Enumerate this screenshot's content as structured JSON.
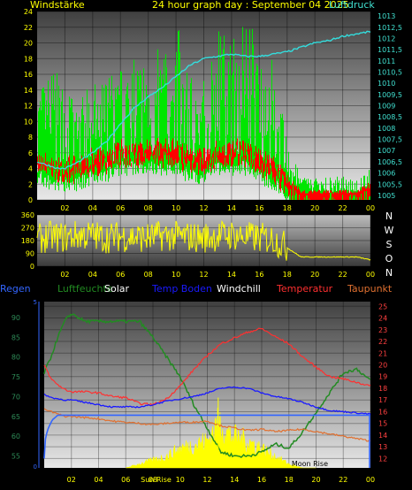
{
  "colors": {
    "background": "#000000",
    "wind": "#00e600",
    "gust": "#00cc00",
    "wind_red": "#ff0000",
    "pressure": "#33dddd",
    "direction": "#ffff00",
    "humidity": "#228b22",
    "solar": "#ffff00",
    "temp_ground": "#1a1aff",
    "temperature": "#ff3030",
    "dewpoint": "#e07030",
    "rain": "#3366ff",
    "axis_left_top": "#ffff00",
    "axis_right_top": "#40e0d0",
    "axis_left_bottom": "#2e8b57",
    "axis_right_bottom": "#ff4040"
  },
  "chart_data": [
    {
      "type": "line",
      "title": "24 hour graph day : September 04 2025",
      "left_label": "Windstärke",
      "right_label": "Luftdruck",
      "x_ticks": [
        "02",
        "04",
        "06",
        "08",
        "10",
        "12",
        "14",
        "16",
        "18",
        "20",
        "22",
        "00"
      ],
      "y_left_ticks": [
        "0",
        "2",
        "4",
        "6",
        "8",
        "10",
        "12",
        "14",
        "16",
        "18",
        "20",
        "22",
        "24"
      ],
      "y_left_range": [
        0,
        24
      ],
      "y_right_ticks": [
        "1005",
        "1005,5",
        "1006",
        "1006,5",
        "1007",
        "1007,5",
        "1008",
        "1008,5",
        "1009",
        "1009,5",
        "1010",
        "1010,5",
        "1011",
        "1011,5",
        "1012",
        "1012,5",
        "1013"
      ],
      "y_right_range": [
        1004.8,
        1013.2
      ],
      "series": [
        {
          "name": "Luftdruck",
          "axis": "right",
          "x": [
            0,
            0.5,
            1,
            1.5,
            2,
            3,
            4,
            5,
            6,
            7,
            8,
            9,
            10,
            11,
            12,
            13,
            14,
            15,
            16,
            17,
            18,
            19,
            20,
            21,
            22,
            23,
            24
          ],
          "values": [
            1006.5,
            1006.4,
            1006.3,
            1006.2,
            1006.2,
            1006.5,
            1006.9,
            1007.4,
            1008.2,
            1008.9,
            1009.4,
            1009.8,
            1010.3,
            1010.8,
            1011.1,
            1011.2,
            1011.3,
            1011.2,
            1011.2,
            1011.3,
            1011.4,
            1011.6,
            1011.8,
            1011.9,
            1012.1,
            1012.2,
            1012.3
          ]
        },
        {
          "name": "Windstärke",
          "axis": "left",
          "x": [
            0,
            1,
            2,
            3,
            4,
            5,
            6,
            7,
            8,
            9,
            10,
            11,
            12,
            13,
            14,
            15,
            16,
            17,
            18,
            19,
            20,
            21,
            22,
            23,
            24
          ],
          "values": [
            6,
            5,
            5,
            5,
            6,
            6,
            7,
            7,
            7,
            7,
            7,
            6,
            6,
            7,
            7,
            7,
            6,
            5,
            3,
            1,
            1,
            1,
            1,
            1,
            2
          ]
        },
        {
          "name": "Böen",
          "axis": "left",
          "x": [
            0,
            1,
            2,
            3,
            4,
            5,
            6,
            7,
            8,
            9,
            10,
            11,
            12,
            13,
            14,
            15,
            16,
            17,
            18,
            19,
            20,
            21,
            22,
            23,
            24
          ],
          "values": [
            14,
            17,
            15,
            13,
            15,
            16,
            17,
            18,
            19,
            20,
            23,
            17,
            16,
            22,
            21,
            24,
            21,
            18,
            7,
            3,
            3,
            3,
            3,
            3,
            4
          ]
        }
      ]
    },
    {
      "type": "line",
      "x_ticks": [
        "02",
        "04",
        "06",
        "08",
        "10",
        "12",
        "14",
        "16",
        "18",
        "20",
        "22",
        "00"
      ],
      "y_ticks": [
        "0",
        "90",
        "180",
        "270",
        "360"
      ],
      "y_range": [
        0,
        360
      ],
      "right_labels": [
        "N",
        "W",
        "S",
        "O",
        "N"
      ],
      "series": [
        {
          "name": "Windrichtung",
          "x": [
            0,
            1,
            2,
            3,
            4,
            5,
            6,
            7,
            8,
            9,
            10,
            11,
            12,
            13,
            14,
            15,
            16,
            17,
            18,
            19,
            20,
            21,
            22,
            23,
            24
          ],
          "values": [
            190,
            210,
            200,
            220,
            215,
            200,
            210,
            205,
            200,
            215,
            210,
            205,
            200,
            215,
            220,
            205,
            200,
            190,
            130,
            65,
            65,
            65,
            65,
            65,
            45
          ]
        }
      ]
    },
    {
      "type": "line",
      "legend": [
        "Regen",
        "Luftfeuchte",
        "Solar",
        "Temp Boden",
        "Windchill",
        "Temperatur",
        "Taupunkt"
      ],
      "x_ticks": [
        "02",
        "04",
        "06",
        "08",
        "10",
        "12",
        "14",
        "16",
        "18",
        "20",
        "22",
        "00"
      ],
      "y_left_ticks": [
        "55",
        "60",
        "65",
        "70",
        "75",
        "80",
        "85",
        "90"
      ],
      "y_left_range": [
        52,
        94
      ],
      "y_right_ticks": [
        "12",
        "13",
        "14",
        "15",
        "16",
        "17",
        "18",
        "19",
        "20",
        "21",
        "22",
        "23",
        "24",
        "25"
      ],
      "y_right_range": [
        11.2,
        25.4
      ],
      "left_scale_marks": [
        "5",
        "0"
      ],
      "annotations": [
        "Sun Rise",
        "Moon Rise"
      ],
      "series": [
        {
          "name": "Luftfeuchte",
          "axis": "left",
          "x": [
            0,
            0.5,
            1,
            1.5,
            2,
            3,
            4,
            5,
            6,
            7,
            8,
            9,
            10,
            11,
            12,
            13,
            14,
            15,
            16,
            17,
            18,
            19,
            20,
            21,
            22,
            23,
            24
          ],
          "values": [
            76,
            80,
            85,
            89,
            91,
            89,
            89,
            89,
            89,
            89,
            85,
            80,
            75,
            68,
            62,
            56,
            55,
            55,
            56,
            58,
            57,
            61,
            66,
            71,
            76,
            77,
            74
          ]
        },
        {
          "name": "Temp Boden",
          "axis": "right",
          "x": [
            0,
            0.5,
            1,
            1.5,
            2,
            3,
            4,
            5,
            6,
            7,
            8,
            9,
            10,
            11,
            12,
            13,
            14,
            15,
            16,
            17,
            18,
            19,
            20,
            21,
            22,
            23,
            24
          ],
          "values": [
            17.5,
            17.2,
            17.1,
            17.0,
            17.0,
            16.8,
            16.6,
            16.4,
            16.4,
            16.4,
            16.6,
            16.9,
            17.1,
            17.3,
            17.6,
            18.0,
            18.1,
            18.0,
            17.6,
            17.3,
            17.1,
            16.8,
            16.4,
            16.1,
            16.0,
            15.9,
            15.8
          ]
        },
        {
          "name": "Temperatur",
          "axis": "right",
          "x": [
            0,
            0.5,
            1,
            1.5,
            2,
            3,
            4,
            5,
            6,
            7,
            8,
            9,
            10,
            11,
            12,
            13,
            14,
            15,
            16,
            17,
            18,
            19,
            20,
            21,
            22,
            23,
            24
          ],
          "values": [
            20.0,
            18.8,
            18.3,
            17.9,
            17.7,
            17.7,
            17.6,
            17.3,
            17.2,
            16.7,
            16.6,
            17.1,
            18.2,
            19.6,
            20.8,
            21.8,
            22.3,
            22.8,
            23.1,
            22.4,
            21.8,
            20.7,
            19.8,
            19.0,
            18.8,
            18.5,
            18.2
          ]
        },
        {
          "name": "Taupunkt",
          "axis": "right",
          "x": [
            0,
            0.5,
            1,
            1.5,
            2,
            3,
            4,
            5,
            6,
            7,
            8,
            9,
            10,
            11,
            12,
            13,
            14,
            15,
            16,
            17,
            18,
            19,
            20,
            21,
            22,
            23,
            24
          ],
          "values": [
            16.2,
            16.0,
            15.8,
            15.6,
            15.6,
            15.5,
            15.4,
            15.2,
            15.1,
            15.0,
            14.9,
            15.0,
            15.1,
            15.1,
            15.2,
            14.8,
            14.6,
            14.4,
            14.5,
            14.3,
            14.4,
            14.5,
            14.3,
            14.1,
            13.9,
            13.7,
            13.5
          ]
        },
        {
          "name": "Regen",
          "axis": "right",
          "x": [
            0,
            0.1,
            0.3,
            0.6,
            1.0,
            24
          ],
          "values": [
            12.0,
            13.8,
            14.6,
            15.3,
            15.7,
            15.7
          ]
        },
        {
          "name": "Solar",
          "axis": "left",
          "x": [
            6,
            7,
            8,
            9,
            10,
            11,
            12,
            12.5,
            13,
            13.5,
            14,
            15,
            16,
            17,
            18,
            19,
            20
          ],
          "values": [
            52,
            53,
            54,
            55,
            57,
            58,
            59,
            62,
            64,
            61,
            60,
            59,
            57,
            55,
            53,
            52,
            52
          ]
        }
      ]
    }
  ]
}
